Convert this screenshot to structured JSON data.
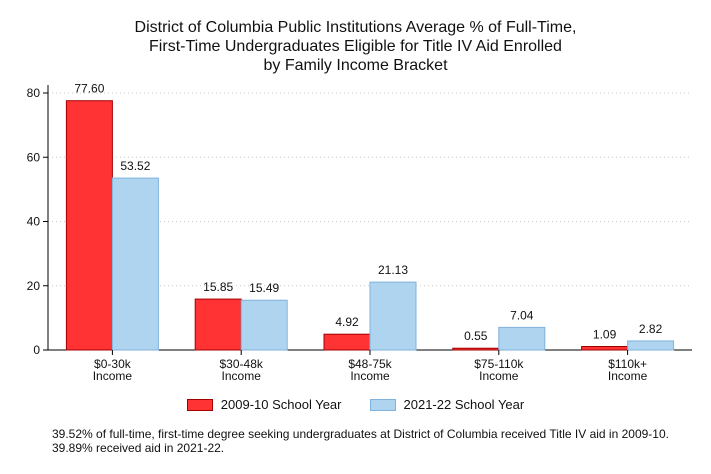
{
  "chart_data": {
    "type": "bar",
    "title_lines": [
      "District of Columbia Public Institutions Average % of Full-Time,",
      "First-Time Undergraduates Eligible for Title IV Aid Enrolled",
      "by Family Income Bracket"
    ],
    "categories": [
      [
        "$0-30k",
        "Income"
      ],
      [
        "$30-48k",
        "Income"
      ],
      [
        "$48-75k",
        "Income"
      ],
      [
        "$75-110k",
        "Income"
      ],
      [
        "$110k+",
        "Income"
      ]
    ],
    "series": [
      {
        "name": "2009-10 School Year",
        "values": [
          77.6,
          15.85,
          4.92,
          0.55,
          1.09
        ],
        "labels": [
          "77.60",
          "15.85",
          "4.92",
          "0.55",
          "1.09"
        ]
      },
      {
        "name": "2021-22 School Year",
        "values": [
          53.52,
          15.49,
          21.13,
          7.04,
          2.82
        ],
        "labels": [
          "53.52",
          "15.49",
          "21.13",
          "7.04",
          "2.82"
        ]
      }
    ],
    "yticks": [
      "0",
      "20",
      "40",
      "60",
      "80"
    ],
    "ylim": [
      0,
      80
    ],
    "grid": "horizontal-dotted",
    "legend_position": "bottom",
    "colors": {
      "series_fill": [
        "#ff3333",
        "#aed4f0"
      ],
      "series_stroke": [
        "#a30000",
        "#7fb2dc"
      ]
    }
  },
  "footnote": "39.52% of full-time, first-time degree seeking undergraduates at District of Columbia received Title IV aid in 2009-10. 39.89% received aid in 2021-22."
}
